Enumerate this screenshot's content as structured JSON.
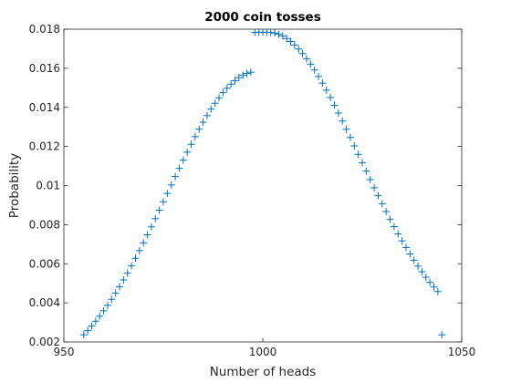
{
  "chart_data": {
    "type": "scatter",
    "title": "2000 coin tosses",
    "xlabel": "Number of heads",
    "ylabel": "Probability",
    "xlim": [
      950,
      1050
    ],
    "ylim": [
      0.002,
      0.018
    ],
    "xticks": [
      950,
      1000,
      1050
    ],
    "xtick_labels": [
      "950",
      "1000",
      "1050"
    ],
    "yticks": [
      0.002,
      0.004,
      0.006,
      0.008,
      0.01,
      0.012,
      0.014,
      0.016,
      0.018
    ],
    "ytick_labels": [
      "0.002",
      "0.004",
      "0.006",
      "0.008",
      "0.01",
      "0.012",
      "0.014",
      "0.016",
      "0.018"
    ],
    "grid": false,
    "marker": "plus",
    "color": "#0072BD",
    "series": [
      {
        "x": [
          955,
          956,
          957,
          958,
          959,
          960,
          961,
          962,
          963,
          964,
          965,
          966,
          967,
          968,
          969,
          970,
          971,
          972,
          973,
          974,
          975,
          976,
          977,
          978,
          979,
          980,
          981,
          982,
          983,
          984,
          985,
          986,
          987,
          988,
          989,
          990,
          991,
          992,
          993,
          994,
          995,
          996,
          997,
          998,
          999,
          1000,
          1001,
          1002,
          1003,
          1004,
          1005,
          1006,
          1007,
          1008,
          1009,
          1010,
          1011,
          1012,
          1013,
          1014,
          1015,
          1016,
          1017,
          1018,
          1019,
          1020,
          1021,
          1022,
          1023,
          1024,
          1025,
          1026,
          1027,
          1028,
          1029,
          1030,
          1031,
          1032,
          1033,
          1034,
          1035,
          1036,
          1037,
          1038,
          1039,
          1040,
          1041,
          1042,
          1043,
          1044,
          1045
        ],
        "y": [
          0.00237,
          0.00258,
          0.00281,
          0.00306,
          0.00332,
          0.00359,
          0.00388,
          0.00418,
          0.0045,
          0.00483,
          0.00517,
          0.00553,
          0.0059,
          0.00628,
          0.00667,
          0.00707,
          0.00748,
          0.00789,
          0.00831,
          0.00874,
          0.00917,
          0.0096,
          0.01003,
          0.01046,
          0.01088,
          0.0113,
          0.01171,
          0.01211,
          0.0125,
          0.01288,
          0.01324,
          0.01358,
          0.01391,
          0.01421,
          0.01449,
          0.01475,
          0.01498,
          0.01519,
          0.01537,
          0.01552,
          0.01565,
          0.01574,
          0.0158,
          0.01783,
          0.01784,
          0.01784,
          0.01784,
          0.01783,
          0.0178,
          0.01774,
          0.01765,
          0.01752,
          0.01737,
          0.01719,
          0.01698,
          0.01675,
          0.01649,
          0.01621,
          0.01591,
          0.01558,
          0.01524,
          0.01488,
          0.01451,
          0.01411,
          0.01371,
          0.0133,
          0.01288,
          0.01246,
          0.01203,
          0.0116,
          0.01117,
          0.01074,
          0.01031,
          0.00989,
          0.00948,
          0.00907,
          0.00867,
          0.00828,
          0.0079,
          0.00753,
          0.00717,
          0.00683,
          0.0065,
          0.00618,
          0.00588,
          0.00559,
          0.00531,
          0.00505,
          0.00481,
          0.00458,
          0.00237
        ]
      }
    ]
  }
}
